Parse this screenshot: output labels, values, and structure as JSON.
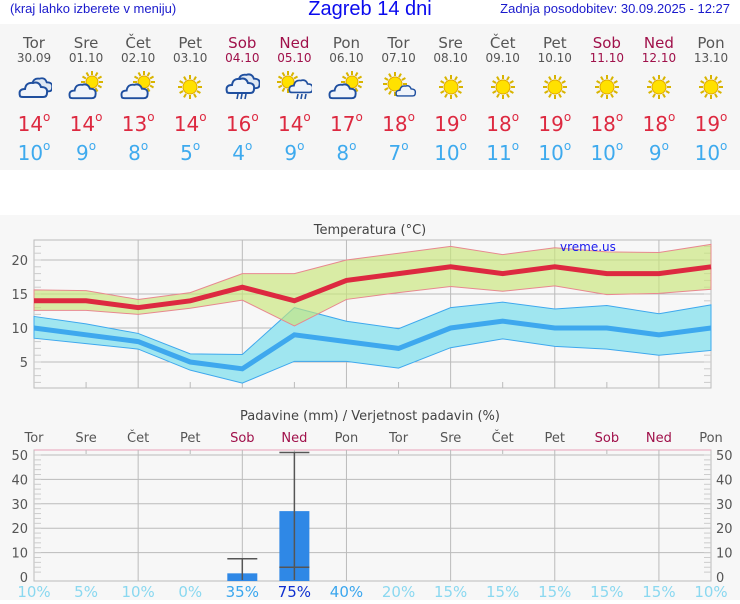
{
  "header": {
    "hint": "(kraj lahko izberete v meniju)",
    "title": "Zagreb 14 dni",
    "updated": "Zadnja posodobitev: 30.09.2025 - 12:27"
  },
  "colors": {
    "max": "#dd2940",
    "min": "#3eaaee",
    "weekend": "#a0104a",
    "max_band": "#d9ef9f",
    "min_band": "#a0e6f0",
    "bar": "#2f88e6"
  },
  "days": [
    {
      "name": "Tor",
      "date": "30.09",
      "weekend": false,
      "icon": "cloudy-icon",
      "max": "14",
      "min": "10"
    },
    {
      "name": "Sre",
      "date": "01.10",
      "weekend": false,
      "icon": "partly-cloudy-icon",
      "max": "14",
      "min": "9"
    },
    {
      "name": "Čet",
      "date": "02.10",
      "weekend": false,
      "icon": "partly-cloudy-icon",
      "max": "13",
      "min": "8"
    },
    {
      "name": "Pet",
      "date": "03.10",
      "weekend": false,
      "icon": "sun-icon",
      "max": "14",
      "min": "5"
    },
    {
      "name": "Sob",
      "date": "04.10",
      "weekend": true,
      "icon": "rain-cloud-icon",
      "max": "16",
      "min": "4"
    },
    {
      "name": "Ned",
      "date": "05.10",
      "weekend": true,
      "icon": "sun-rain-cloud-icon",
      "max": "14",
      "min": "9"
    },
    {
      "name": "Pon",
      "date": "06.10",
      "weekend": false,
      "icon": "partly-cloudy-icon",
      "max": "17",
      "min": "8"
    },
    {
      "name": "Tor",
      "date": "07.10",
      "weekend": false,
      "icon": "sun-small-cloud-icon",
      "max": "18",
      "min": "7"
    },
    {
      "name": "Sre",
      "date": "08.10",
      "weekend": false,
      "icon": "sun-icon",
      "max": "19",
      "min": "10"
    },
    {
      "name": "Čet",
      "date": "09.10",
      "weekend": false,
      "icon": "sun-icon",
      "max": "18",
      "min": "11"
    },
    {
      "name": "Pet",
      "date": "10.10",
      "weekend": false,
      "icon": "sun-icon",
      "max": "19",
      "min": "10"
    },
    {
      "name": "Sob",
      "date": "11.10",
      "weekend": true,
      "icon": "sun-icon",
      "max": "18",
      "min": "10"
    },
    {
      "name": "Ned",
      "date": "12.10",
      "weekend": true,
      "icon": "sun-icon",
      "max": "18",
      "min": "9"
    },
    {
      "name": "Pon",
      "date": "13.10",
      "weekend": false,
      "icon": "sun-icon",
      "max": "19",
      "min": "10"
    }
  ],
  "degree": "o",
  "chart_data": [
    {
      "type": "line",
      "title": "Temperatura (°C)",
      "watermark": "vreme.us",
      "ylim": [
        1.2,
        22.9
      ],
      "yticks": [
        5,
        10,
        15,
        20
      ],
      "grid": true,
      "x": [
        "Tor",
        "Sre",
        "Čet",
        "Pet",
        "Sob",
        "Ned",
        "Pon",
        "Tor",
        "Sre",
        "Čet",
        "Pet",
        "Sob",
        "Ned",
        "Pon"
      ],
      "series": [
        {
          "role": "max",
          "values": [
            14,
            14,
            13,
            14,
            16,
            14,
            17,
            18,
            19,
            18,
            19,
            18,
            18,
            19
          ],
          "upper": [
            15.6,
            15.5,
            14.2,
            15.2,
            18,
            18,
            20,
            21,
            22,
            20.8,
            21.8,
            21.2,
            21.1,
            22.3
          ],
          "lower": [
            12.6,
            12.6,
            12,
            12.9,
            14.1,
            10.3,
            14.2,
            15.2,
            16.1,
            15.4,
            16.2,
            14.9,
            15.1,
            15.7
          ]
        },
        {
          "role": "min",
          "values": [
            10,
            9,
            8,
            5,
            4,
            9,
            8,
            7,
            10,
            11,
            10,
            10,
            9,
            10
          ],
          "upper": [
            11.7,
            10.6,
            9.2,
            6.2,
            6.1,
            13,
            11,
            9.9,
            13,
            13.8,
            12.8,
            13.3,
            12.1,
            13.4
          ],
          "lower": [
            8.5,
            7.7,
            6.9,
            3.8,
            1.9,
            5.1,
            5.1,
            4.1,
            7.1,
            8.4,
            7.3,
            6.9,
            6,
            6.7
          ]
        }
      ]
    },
    {
      "type": "bar",
      "title": "Padavine (mm) / Verjetnost padavin (%)",
      "ylim": [
        -1.7,
        52
      ],
      "yticks": [
        0,
        10,
        20,
        30,
        40,
        50
      ],
      "grid": true,
      "categories": [
        "Tor",
        "Sre",
        "Čet",
        "Pet",
        "Sob",
        "Ned",
        "Pon",
        "Tor",
        "Sre",
        "Čet",
        "Pet",
        "Sob",
        "Ned",
        "Pon"
      ],
      "values": [
        0,
        0,
        0,
        0,
        1.5,
        27,
        0,
        0,
        0,
        0,
        0,
        0,
        0,
        0
      ],
      "error_low": [
        null,
        null,
        null,
        null,
        0,
        4,
        null,
        null,
        null,
        null,
        null,
        null,
        null,
        null
      ],
      "error_high": [
        null,
        null,
        null,
        null,
        7.5,
        51,
        null,
        null,
        null,
        null,
        null,
        null,
        null,
        null
      ],
      "probability": [
        "10%",
        "5%",
        "10%",
        "0%",
        "35%",
        "75%",
        "40%",
        "20%",
        "15%",
        "15%",
        "15%",
        "15%",
        "15%",
        "10%"
      ]
    }
  ]
}
